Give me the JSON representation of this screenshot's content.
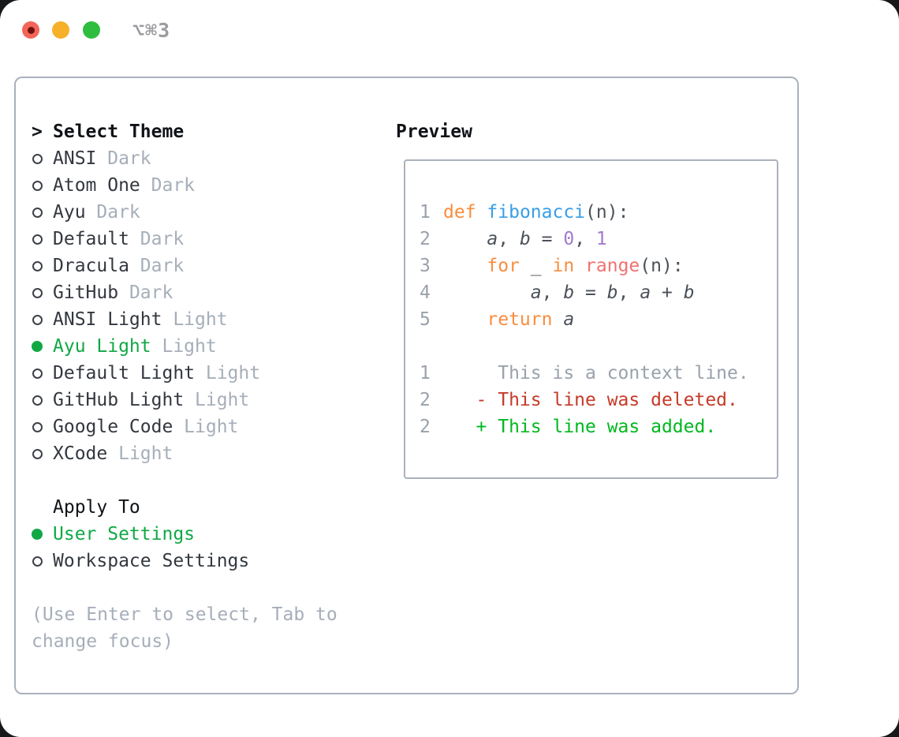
{
  "window": {
    "shortcut_label": "⌥⌘3"
  },
  "colors": {
    "traffic_red": "#f3655a",
    "traffic_yellow": "#f6b02a",
    "traffic_green": "#2ebd3f",
    "panel_border": "#a9b1bc",
    "text_dark": "#33383f",
    "muted_gray": "#a6aeb9",
    "selected_green": "#10a845",
    "keyword_orange": "#fa8d3e",
    "function_blue": "#399ee6",
    "number_purple": "#a37acc",
    "builtin_red": "#f07171",
    "code_text": "#4b5159",
    "line_number_gray": "#9aa1ab",
    "diff_deleted_red": "#c63a28",
    "diff_added_green": "#00b81f"
  },
  "theme_list": {
    "cursor": ">",
    "title": "Select Theme",
    "items": [
      {
        "name": "ANSI",
        "variant": "Dark",
        "selected": false
      },
      {
        "name": "Atom One",
        "variant": "Dark",
        "selected": false
      },
      {
        "name": "Ayu",
        "variant": "Dark",
        "selected": false
      },
      {
        "name": "Default",
        "variant": "Dark",
        "selected": false
      },
      {
        "name": "Dracula",
        "variant": "Dark",
        "selected": false
      },
      {
        "name": "GitHub",
        "variant": "Dark",
        "selected": false
      },
      {
        "name": "ANSI Light",
        "variant": "Light",
        "selected": false
      },
      {
        "name": "Ayu Light",
        "variant": "Light",
        "selected": true
      },
      {
        "name": "Default Light",
        "variant": "Light",
        "selected": false
      },
      {
        "name": "GitHub Light",
        "variant": "Light",
        "selected": false
      },
      {
        "name": "Google Code",
        "variant": "Light",
        "selected": false
      },
      {
        "name": "XCode",
        "variant": "Light",
        "selected": false
      }
    ]
  },
  "apply_to": {
    "title": "Apply To",
    "options": [
      {
        "label": "User Settings",
        "selected": true
      },
      {
        "label": "Workspace Settings",
        "selected": false
      }
    ]
  },
  "hint": "(Use Enter to select, Tab to change focus)",
  "preview": {
    "title": "Preview",
    "code_lines": [
      {
        "number": "1",
        "tokens": [
          [
            "def",
            "kw"
          ],
          [
            " ",
            ""
          ],
          [
            "fibonacci",
            "fn"
          ],
          [
            "(n):",
            ""
          ]
        ]
      },
      {
        "number": "2",
        "tokens": [
          [
            "    ",
            ""
          ],
          [
            "a",
            "var"
          ],
          [
            ", ",
            ""
          ],
          [
            "b",
            "var"
          ],
          [
            " = ",
            ""
          ],
          [
            "0",
            "num"
          ],
          [
            ", ",
            ""
          ],
          [
            "1",
            "num"
          ]
        ]
      },
      {
        "number": "3",
        "tokens": [
          [
            "    ",
            ""
          ],
          [
            "for",
            "kw"
          ],
          [
            " _ ",
            ""
          ],
          [
            "in",
            "kw"
          ],
          [
            " ",
            ""
          ],
          [
            "range",
            "bi"
          ],
          [
            "(n):",
            ""
          ]
        ]
      },
      {
        "number": "4",
        "tokens": [
          [
            "        ",
            ""
          ],
          [
            "a",
            "var"
          ],
          [
            ", ",
            ""
          ],
          [
            "b",
            "var"
          ],
          [
            " = ",
            ""
          ],
          [
            "b",
            "var"
          ],
          [
            ", ",
            ""
          ],
          [
            "a",
            "var"
          ],
          [
            " + ",
            ""
          ],
          [
            "b",
            "var"
          ]
        ]
      },
      {
        "number": "5",
        "tokens": [
          [
            "    ",
            ""
          ],
          [
            "return",
            "kw"
          ],
          [
            " ",
            ""
          ],
          [
            "a",
            "var"
          ]
        ]
      }
    ],
    "diff_lines": [
      {
        "number": "1",
        "sign": " ",
        "text": "This is a context line.",
        "kind": "context"
      },
      {
        "number": "2",
        "sign": "-",
        "text": "This line was deleted.",
        "kind": "deleted"
      },
      {
        "number": "2",
        "sign": "+",
        "text": "This line was added.",
        "kind": "added"
      }
    ]
  }
}
